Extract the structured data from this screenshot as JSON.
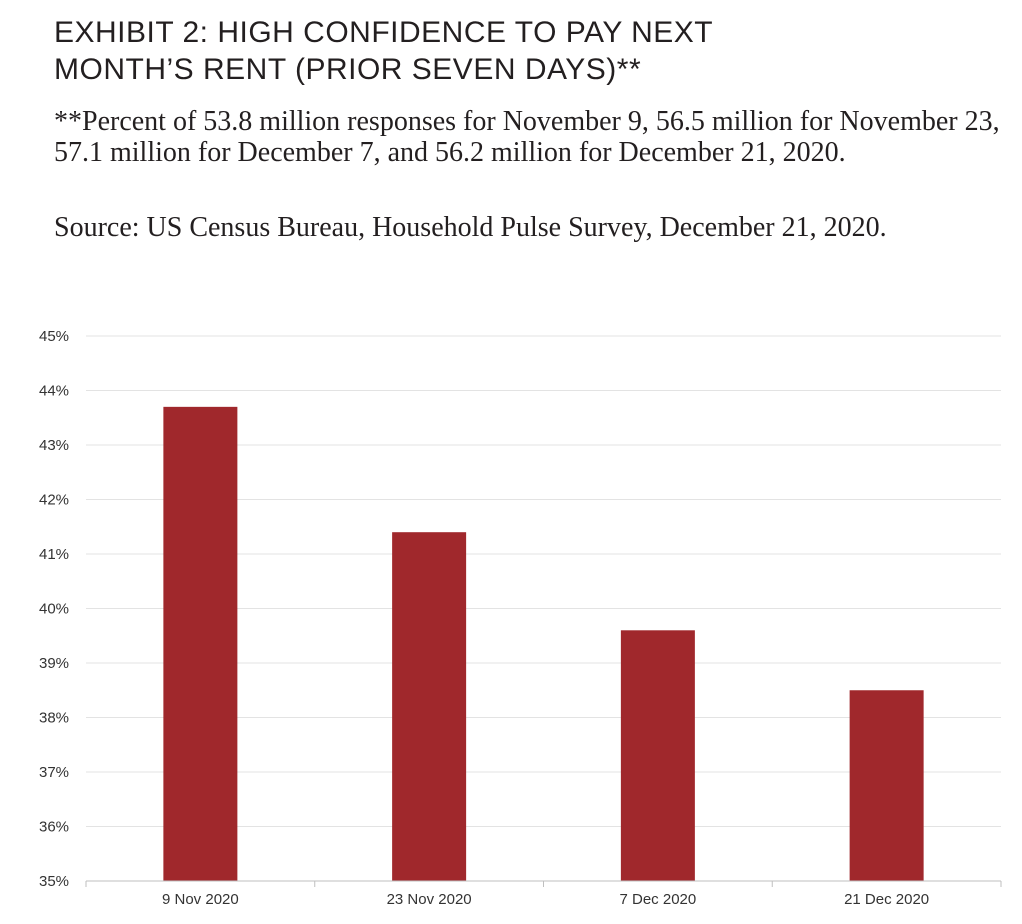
{
  "header": {
    "title": "EXHIBIT 2: HIGH CONFIDENCE TO PAY NEXT\nMONTH’S RENT (PRIOR SEVEN DAYS)**",
    "note": "**Percent of 53.8 million responses for November 9, 56.5 million for November 23, 57.1 million for December 7, and 56.2 million for December 21, 2020.",
    "source": "Source: US Census Bureau, Household Pulse Survey, December 21, 2020."
  },
  "colors": {
    "bar": "#a0282c",
    "grid": "#e3e3e3",
    "axis": "#bfbfbf"
  },
  "chart_data": {
    "type": "bar",
    "categories": [
      "9 Nov 2020",
      "23 Nov 2020",
      "7 Dec 2020",
      "21 Dec 2020"
    ],
    "values": [
      43.7,
      41.4,
      39.6,
      38.5
    ],
    "ylim": [
      35,
      45
    ],
    "yticks": [
      35,
      36,
      37,
      38,
      39,
      40,
      41,
      42,
      43,
      44,
      45
    ],
    "ytick_labels": [
      "35%",
      "36%",
      "37%",
      "38%",
      "39%",
      "40%",
      "41%",
      "42%",
      "43%",
      "44%",
      "45%"
    ],
    "xlabel": "",
    "ylabel": "",
    "grid": true,
    "legend": "none"
  }
}
